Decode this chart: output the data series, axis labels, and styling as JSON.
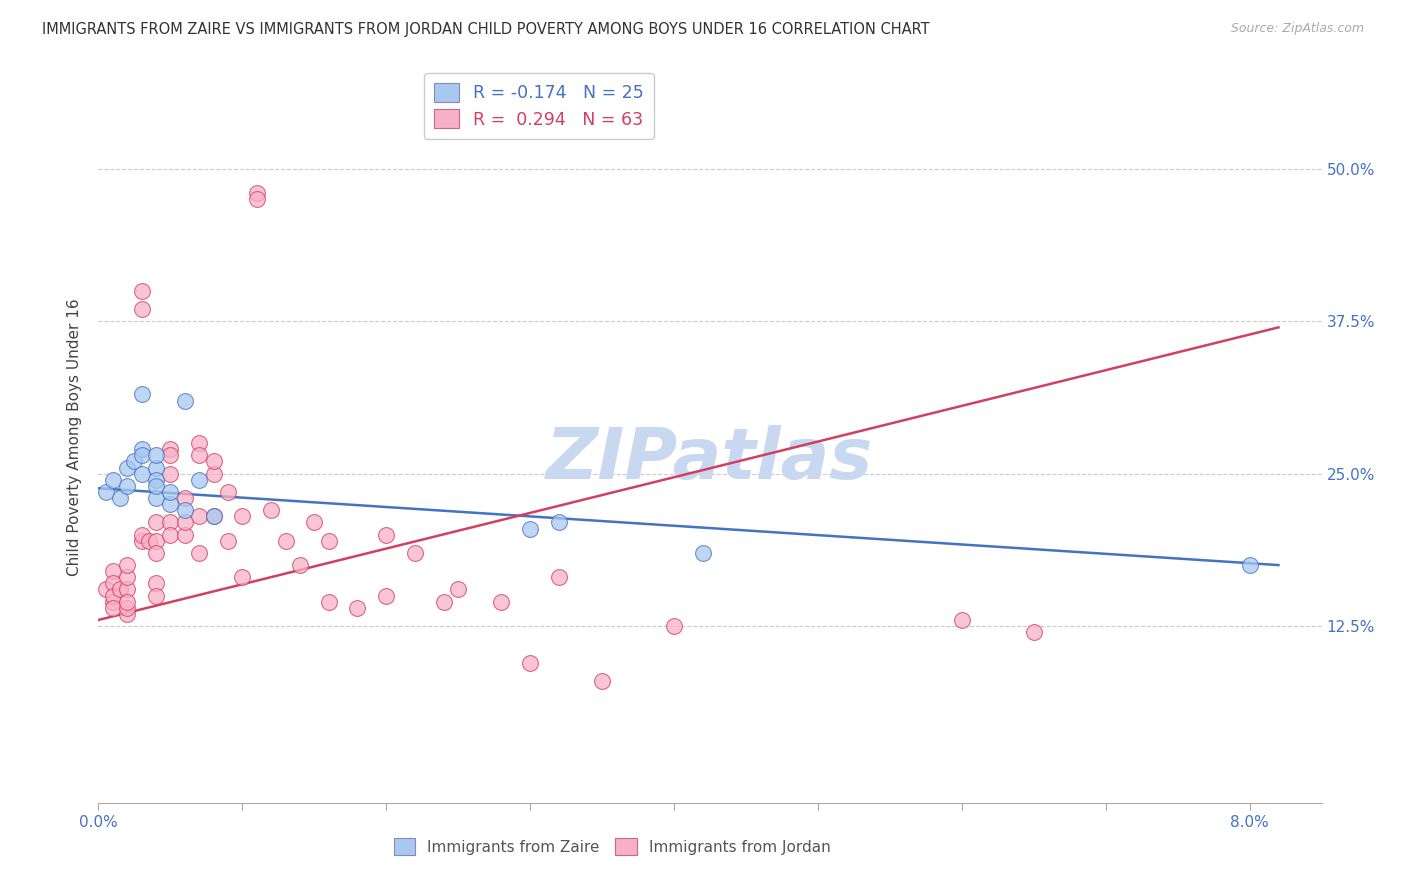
{
  "title": "IMMIGRANTS FROM ZAIRE VS IMMIGRANTS FROM JORDAN CHILD POVERTY AMONG BOYS UNDER 16 CORRELATION CHART",
  "source": "Source: ZipAtlas.com",
  "ylabel": "Child Poverty Among Boys Under 16",
  "xlim": [
    0.0,
    0.085
  ],
  "ylim": [
    -0.02,
    0.58
  ],
  "y_tick_vals": [
    0.125,
    0.25,
    0.375,
    0.5
  ],
  "y_tick_labels": [
    "12.5%",
    "25.0%",
    "37.5%",
    "50.0%"
  ],
  "x_tick_vals": [
    0.0,
    0.01,
    0.02,
    0.03,
    0.04,
    0.05,
    0.06,
    0.07,
    0.08
  ],
  "legend_zaire": "R = -0.174   N = 25",
  "legend_jordan": "R =  0.294   N = 63",
  "color_zaire": "#a8c8f0",
  "color_jordan": "#f8b0c8",
  "line_color_zaire": "#4472c4",
  "line_color_jordan": "#d04060",
  "watermark_color": "#c8d8f0",
  "zaire_points": [
    [
      0.0005,
      0.235
    ],
    [
      0.001,
      0.245
    ],
    [
      0.0015,
      0.23
    ],
    [
      0.002,
      0.24
    ],
    [
      0.002,
      0.255
    ],
    [
      0.0025,
      0.26
    ],
    [
      0.003,
      0.27
    ],
    [
      0.003,
      0.265
    ],
    [
      0.003,
      0.315
    ],
    [
      0.003,
      0.25
    ],
    [
      0.004,
      0.255
    ],
    [
      0.004,
      0.245
    ],
    [
      0.004,
      0.23
    ],
    [
      0.004,
      0.24
    ],
    [
      0.004,
      0.265
    ],
    [
      0.005,
      0.225
    ],
    [
      0.005,
      0.235
    ],
    [
      0.006,
      0.31
    ],
    [
      0.006,
      0.22
    ],
    [
      0.007,
      0.245
    ],
    [
      0.008,
      0.215
    ],
    [
      0.03,
      0.205
    ],
    [
      0.032,
      0.21
    ],
    [
      0.042,
      0.185
    ],
    [
      0.08,
      0.175
    ]
  ],
  "jordan_points": [
    [
      0.0005,
      0.155
    ],
    [
      0.001,
      0.17
    ],
    [
      0.001,
      0.16
    ],
    [
      0.001,
      0.145
    ],
    [
      0.001,
      0.15
    ],
    [
      0.001,
      0.14
    ],
    [
      0.0015,
      0.155
    ],
    [
      0.002,
      0.155
    ],
    [
      0.002,
      0.165
    ],
    [
      0.002,
      0.135
    ],
    [
      0.002,
      0.175
    ],
    [
      0.002,
      0.14
    ],
    [
      0.002,
      0.145
    ],
    [
      0.003,
      0.195
    ],
    [
      0.003,
      0.2
    ],
    [
      0.003,
      0.385
    ],
    [
      0.003,
      0.4
    ],
    [
      0.0035,
      0.195
    ],
    [
      0.004,
      0.21
    ],
    [
      0.004,
      0.195
    ],
    [
      0.004,
      0.185
    ],
    [
      0.004,
      0.16
    ],
    [
      0.004,
      0.15
    ],
    [
      0.005,
      0.27
    ],
    [
      0.005,
      0.265
    ],
    [
      0.005,
      0.25
    ],
    [
      0.005,
      0.21
    ],
    [
      0.005,
      0.2
    ],
    [
      0.006,
      0.23
    ],
    [
      0.006,
      0.2
    ],
    [
      0.006,
      0.21
    ],
    [
      0.007,
      0.275
    ],
    [
      0.007,
      0.265
    ],
    [
      0.007,
      0.215
    ],
    [
      0.007,
      0.185
    ],
    [
      0.008,
      0.25
    ],
    [
      0.008,
      0.26
    ],
    [
      0.008,
      0.215
    ],
    [
      0.009,
      0.235
    ],
    [
      0.009,
      0.195
    ],
    [
      0.01,
      0.215
    ],
    [
      0.01,
      0.165
    ],
    [
      0.011,
      0.48
    ],
    [
      0.011,
      0.475
    ],
    [
      0.012,
      0.22
    ],
    [
      0.013,
      0.195
    ],
    [
      0.014,
      0.175
    ],
    [
      0.015,
      0.21
    ],
    [
      0.016,
      0.195
    ],
    [
      0.016,
      0.145
    ],
    [
      0.018,
      0.14
    ],
    [
      0.02,
      0.2
    ],
    [
      0.02,
      0.15
    ],
    [
      0.022,
      0.185
    ],
    [
      0.024,
      0.145
    ],
    [
      0.025,
      0.155
    ],
    [
      0.028,
      0.145
    ],
    [
      0.03,
      0.095
    ],
    [
      0.032,
      0.165
    ],
    [
      0.035,
      0.08
    ],
    [
      0.04,
      0.125
    ],
    [
      0.06,
      0.13
    ],
    [
      0.065,
      0.12
    ]
  ]
}
